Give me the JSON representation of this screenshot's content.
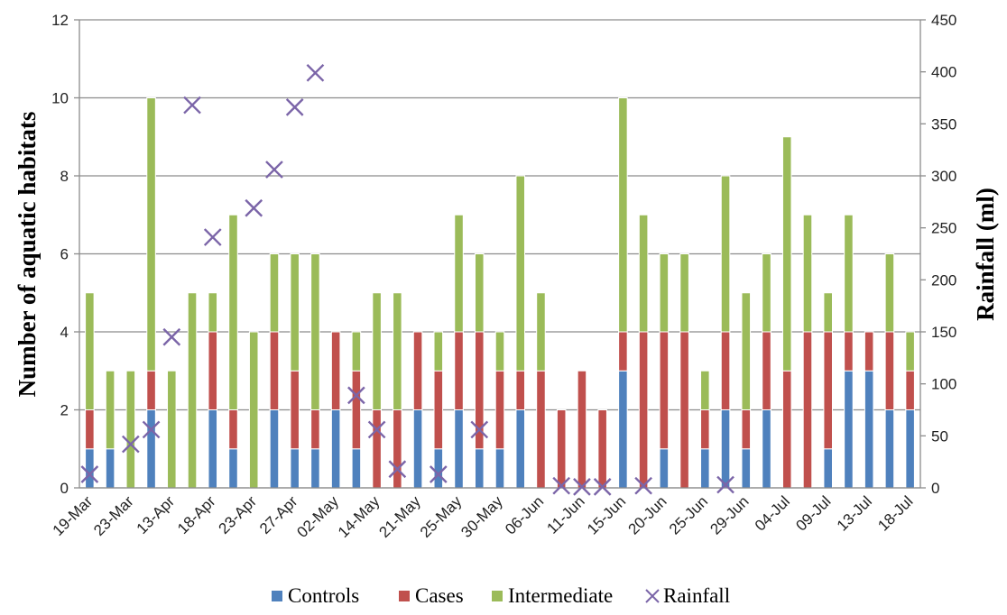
{
  "chart_data": {
    "type": "bar",
    "stacked": true,
    "categories": [
      "19-Mar",
      "",
      "23-Mar",
      "",
      "13-Apr",
      "",
      "18-Apr",
      "",
      "23-Apr",
      "",
      "27-Apr",
      "",
      "02-May",
      "",
      "14-May",
      "",
      "21-May",
      "",
      "25-May",
      "",
      "30-May",
      "",
      "06-Jun",
      "",
      "11-Jun",
      "",
      "15-Jun",
      "",
      "20-Jun",
      "",
      "25-Jun",
      "",
      "29-Jun",
      "",
      "04-Jul",
      "",
      "09-Jul",
      "",
      "13-Jul",
      "",
      "18-Jul"
    ],
    "series": [
      {
        "name": "Controls",
        "color": "#4F81BD",
        "axis": "left",
        "values": [
          1,
          1,
          0,
          2,
          0,
          0,
          2,
          1,
          0,
          2,
          1,
          1,
          2,
          1,
          0,
          0,
          2,
          1,
          2,
          1,
          1,
          2,
          0,
          0,
          0,
          0,
          3,
          0,
          1,
          0,
          1,
          2,
          1,
          2,
          0,
          0,
          1,
          3,
          3,
          2,
          2
        ]
      },
      {
        "name": "Cases",
        "color": "#C0504D",
        "axis": "left",
        "values": [
          1,
          0,
          0,
          1,
          0,
          0,
          2,
          1,
          0,
          2,
          2,
          1,
          2,
          2,
          2,
          2,
          2,
          2,
          2,
          3,
          2,
          1,
          3,
          2,
          3,
          2,
          1,
          4,
          3,
          4,
          1,
          2,
          1,
          2,
          3,
          4,
          3,
          1,
          1,
          2,
          1
        ]
      },
      {
        "name": "Intermediate",
        "color": "#9BBB59",
        "axis": "left",
        "values": [
          3,
          2,
          3,
          7,
          3,
          5,
          1,
          5,
          4,
          2,
          3,
          4,
          0,
          1,
          3,
          3,
          0,
          1,
          3,
          2,
          1,
          5,
          2,
          0,
          0,
          0,
          6,
          3,
          2,
          2,
          1,
          4,
          3,
          2,
          6,
          3,
          1,
          3,
          0,
          2,
          1
        ]
      },
      {
        "name": "Rainfall",
        "type": "scatter",
        "marker": "x",
        "color": "#7B65A8",
        "axis": "right",
        "points": [
          [
            0,
            13
          ],
          [
            2,
            42
          ],
          [
            3,
            56
          ],
          [
            4,
            145
          ],
          [
            5,
            368
          ],
          [
            6,
            241
          ],
          [
            8,
            269
          ],
          [
            9,
            306
          ],
          [
            10,
            366
          ],
          [
            11,
            399
          ],
          [
            13,
            89
          ],
          [
            14,
            56
          ],
          [
            15,
            18
          ],
          [
            17,
            13
          ],
          [
            19,
            56
          ],
          [
            23,
            2
          ],
          [
            24,
            1
          ],
          [
            25,
            1
          ],
          [
            27,
            2
          ],
          [
            31,
            3
          ]
        ]
      }
    ],
    "xlabel": "",
    "ylabel": "Number of aquatic habitats",
    "y2label": "Rainfall (ml)",
    "ylim": [
      0,
      12
    ],
    "yticks": [
      0,
      2,
      4,
      6,
      8,
      10,
      12
    ],
    "y2lim": [
      0,
      450
    ],
    "y2ticks": [
      0,
      50,
      100,
      150,
      200,
      250,
      300,
      350,
      400,
      450
    ],
    "grid": true,
    "legend_position": "bottom"
  },
  "legend": {
    "items": [
      {
        "label": "Controls",
        "marker": "square",
        "color": "#4F81BD"
      },
      {
        "label": "Cases",
        "marker": "square",
        "color": "#C0504D"
      },
      {
        "label": "Intermediate",
        "marker": "square",
        "color": "#9BBB59"
      },
      {
        "label": "Rainfall",
        "marker": "x",
        "color": "#7B65A8"
      }
    ]
  }
}
